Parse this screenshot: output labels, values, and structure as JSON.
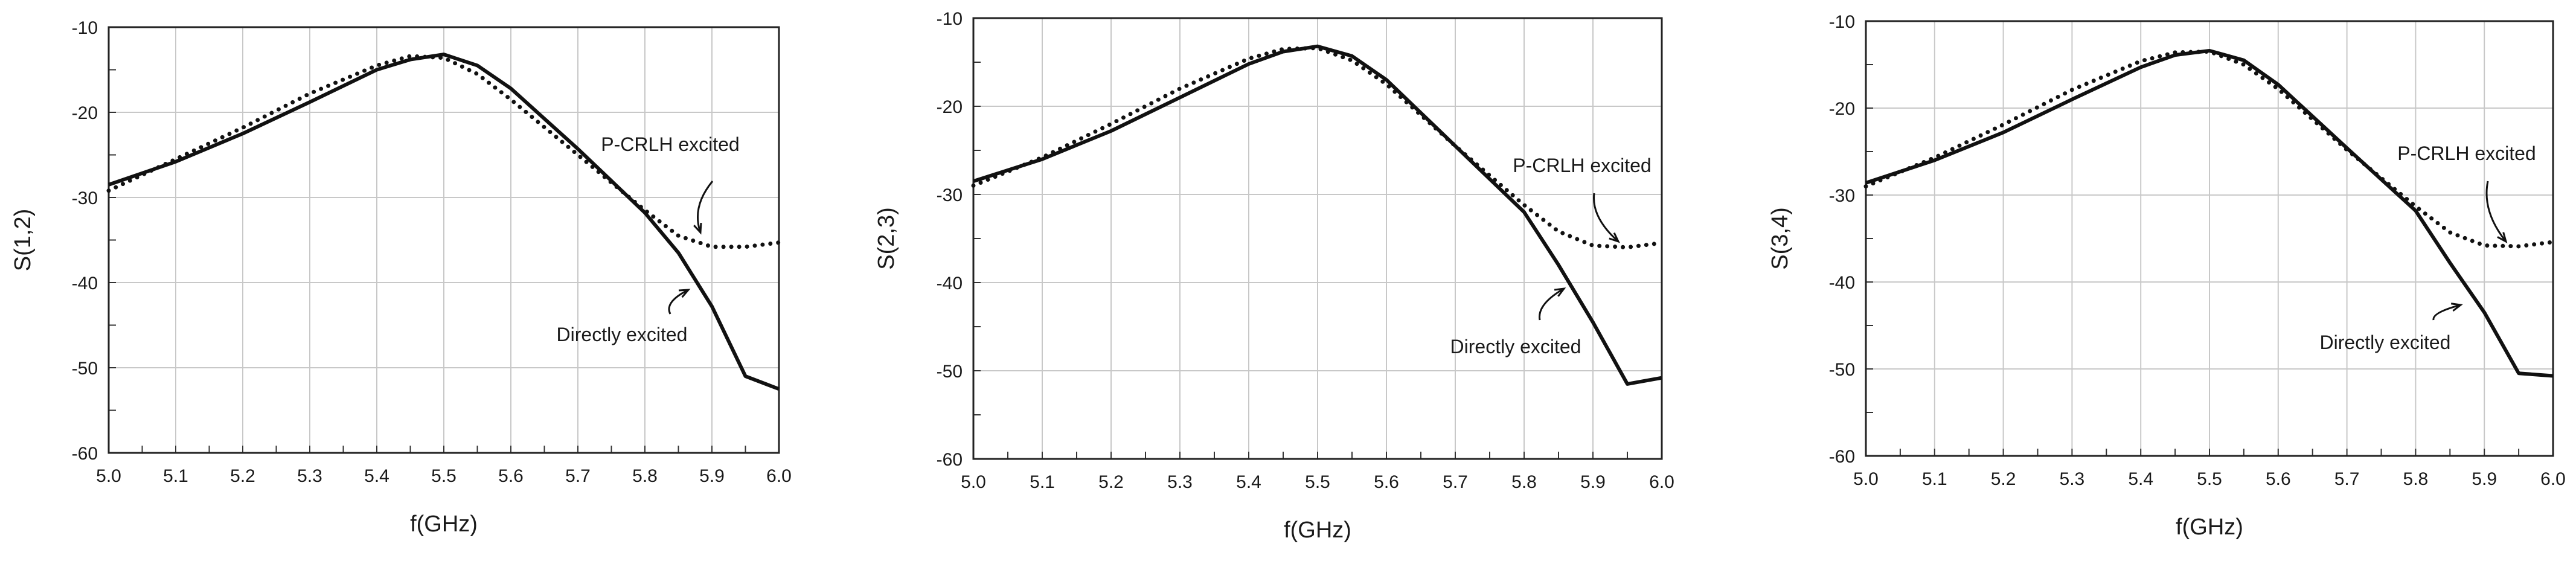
{
  "chart_data": [
    {
      "type": "line",
      "title": "",
      "xlabel": "f(GHz)",
      "ylabel": "S(1,2)",
      "xlim": [
        5.0,
        6.0
      ],
      "ylim": [
        -60,
        -10
      ],
      "grid": true,
      "x_ticks": [
        5.0,
        5.1,
        5.2,
        5.3,
        5.4,
        5.5,
        5.6,
        5.7,
        5.8,
        5.9,
        6.0
      ],
      "x_tick_labels": [
        "5.0",
        "5.1",
        "5.2",
        "5.3",
        "5.4",
        "5.5",
        "5.6",
        "5.7",
        "5.8",
        "5.9",
        "6.0"
      ],
      "y_ticks": [
        -10,
        -20,
        -30,
        -40,
        -50,
        -60
      ],
      "y_tick_labels": [
        "-10",
        "-20",
        "-30",
        "-40",
        "-50",
        "-60"
      ],
      "series": [
        {
          "name": "Directly excited",
          "style": "solid",
          "x": [
            5.0,
            5.1,
            5.2,
            5.3,
            5.4,
            5.45,
            5.5,
            5.55,
            5.6,
            5.7,
            5.8,
            5.85,
            5.9,
            5.95,
            6.0
          ],
          "y": [
            -28.5,
            -25.8,
            -22.5,
            -18.8,
            -15.0,
            -13.8,
            -13.2,
            -14.5,
            -17.2,
            -24.3,
            -31.8,
            -36.5,
            -42.8,
            -51.0,
            -52.5
          ]
        },
        {
          "name": "P-CRLH excited",
          "style": "dotted",
          "x": [
            5.0,
            5.1,
            5.2,
            5.3,
            5.4,
            5.45,
            5.5,
            5.55,
            5.6,
            5.7,
            5.8,
            5.85,
            5.9,
            5.95,
            6.0
          ],
          "y": [
            -29.2,
            -25.5,
            -21.8,
            -17.8,
            -14.5,
            -13.4,
            -13.6,
            -15.5,
            -18.5,
            -25.0,
            -31.5,
            -34.5,
            -35.8,
            -35.8,
            -35.3
          ]
        }
      ],
      "annotations": [
        {
          "text": "P-CRLH excited",
          "target_series": "P-CRLH excited"
        },
        {
          "text": "Directly excited",
          "target_series": "Directly excited"
        }
      ]
    },
    {
      "type": "line",
      "title": "",
      "xlabel": "f(GHz)",
      "ylabel": "S(2,3)",
      "xlim": [
        5.0,
        6.0
      ],
      "ylim": [
        -60,
        -10
      ],
      "grid": true,
      "x_ticks": [
        5.0,
        5.1,
        5.2,
        5.3,
        5.4,
        5.5,
        5.6,
        5.7,
        5.8,
        5.9,
        6.0
      ],
      "x_tick_labels": [
        "5.0",
        "5.1",
        "5.2",
        "5.3",
        "5.4",
        "5.5",
        "5.6",
        "5.7",
        "5.8",
        "5.9",
        "6.0"
      ],
      "y_ticks": [
        -10,
        -20,
        -30,
        -40,
        -50,
        -60
      ],
      "y_tick_labels": [
        "-10",
        "-20",
        "-30",
        "-40",
        "-50",
        "-60"
      ],
      "series": [
        {
          "name": "Directly excited",
          "style": "solid",
          "x": [
            5.0,
            5.1,
            5.2,
            5.3,
            5.4,
            5.45,
            5.5,
            5.55,
            5.6,
            5.7,
            5.8,
            5.85,
            5.9,
            5.95,
            6.0
          ],
          "y": [
            -28.5,
            -26.0,
            -22.8,
            -19.0,
            -15.2,
            -13.8,
            -13.2,
            -14.3,
            -17.0,
            -24.5,
            -32.0,
            -38.0,
            -44.5,
            -51.5,
            -50.8
          ]
        },
        {
          "name": "P-CRLH excited",
          "style": "dotted",
          "x": [
            5.0,
            5.1,
            5.2,
            5.3,
            5.4,
            5.45,
            5.5,
            5.55,
            5.6,
            5.7,
            5.8,
            5.85,
            5.9,
            5.95,
            6.0
          ],
          "y": [
            -29.0,
            -25.8,
            -22.0,
            -18.0,
            -14.6,
            -13.5,
            -13.4,
            -14.8,
            -17.5,
            -24.5,
            -31.2,
            -34.2,
            -35.8,
            -36.0,
            -35.5
          ]
        }
      ],
      "annotations": [
        {
          "text": "P-CRLH excited",
          "target_series": "P-CRLH excited"
        },
        {
          "text": "Directly excited",
          "target_series": "Directly excited"
        }
      ]
    },
    {
      "type": "line",
      "title": "",
      "xlabel": "f(GHz)",
      "ylabel": "S(3,4)",
      "xlim": [
        5.0,
        6.0
      ],
      "ylim": [
        -60,
        -10
      ],
      "grid": true,
      "x_ticks": [
        5.0,
        5.1,
        5.2,
        5.3,
        5.4,
        5.5,
        5.6,
        5.7,
        5.8,
        5.9,
        6.0
      ],
      "x_tick_labels": [
        "5.0",
        "5.1",
        "5.2",
        "5.3",
        "5.4",
        "5.5",
        "5.6",
        "5.7",
        "5.8",
        "5.9",
        "6.0"
      ],
      "y_ticks": [
        -10,
        -20,
        -30,
        -40,
        -50,
        -60
      ],
      "y_tick_labels": [
        "-10",
        "-20",
        "-30",
        "-40",
        "-50",
        "-60"
      ],
      "series": [
        {
          "name": "Directly excited",
          "style": "solid",
          "x": [
            5.0,
            5.1,
            5.2,
            5.3,
            5.4,
            5.45,
            5.5,
            5.55,
            5.6,
            5.7,
            5.8,
            5.85,
            5.9,
            5.95,
            6.0
          ],
          "y": [
            -28.6,
            -26.0,
            -22.8,
            -19.0,
            -15.3,
            -13.9,
            -13.4,
            -14.5,
            -17.3,
            -24.6,
            -31.8,
            -37.8,
            -43.5,
            -50.5,
            -50.8
          ]
        },
        {
          "name": "P-CRLH excited",
          "style": "dotted",
          "x": [
            5.0,
            5.1,
            5.2,
            5.3,
            5.4,
            5.45,
            5.5,
            5.55,
            5.6,
            5.7,
            5.8,
            5.85,
            5.9,
            5.95,
            6.0
          ],
          "y": [
            -29.0,
            -25.7,
            -21.9,
            -17.9,
            -14.6,
            -13.6,
            -13.5,
            -15.0,
            -17.8,
            -24.8,
            -31.3,
            -34.3,
            -35.8,
            -35.9,
            -35.4
          ]
        }
      ],
      "annotations": [
        {
          "text": "P-CRLH excited",
          "target_series": "P-CRLH excited"
        },
        {
          "text": "Directly excited",
          "target_series": "Directly excited"
        }
      ]
    }
  ]
}
